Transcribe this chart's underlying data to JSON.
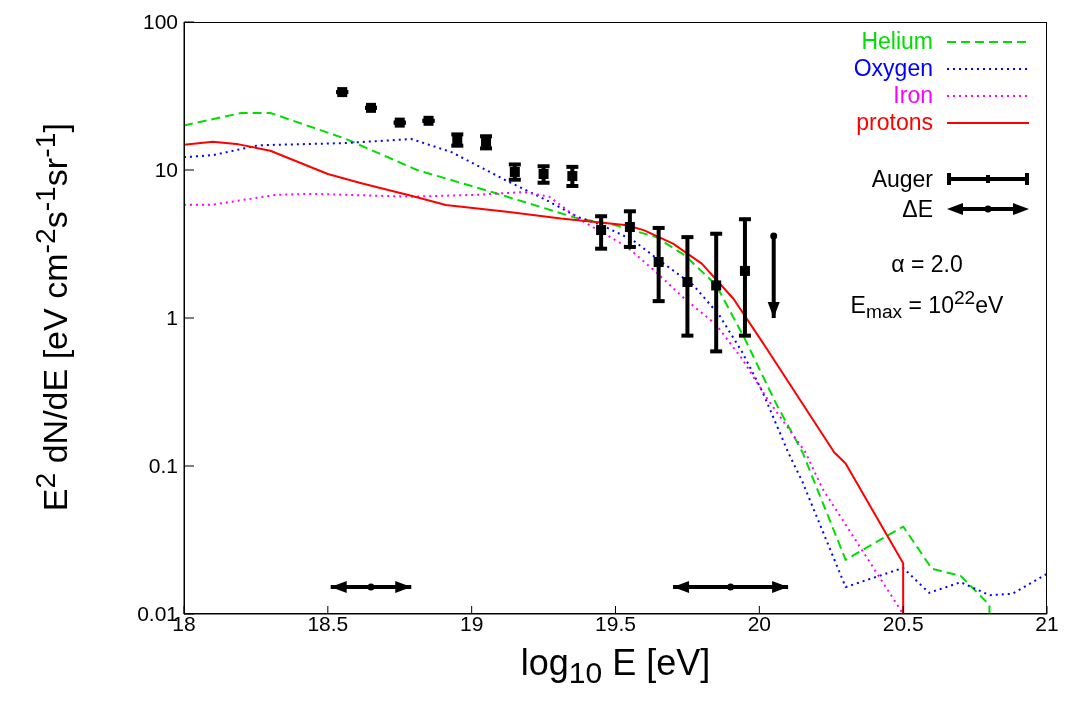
{
  "chart_data": {
    "type": "line",
    "xlabel": "log$_{10}$ E [eV]",
    "ylabel": "E$^{2}$ dN/dE [eV cm$^{-2}$s$^{-1}$sr$^{-1}$]",
    "xlim": [
      18,
      21
    ],
    "xticks": [
      18,
      18.5,
      19,
      19.5,
      20,
      20.5,
      21
    ],
    "ylim": [
      0.01,
      100
    ],
    "yticks": [
      0.01,
      0.1,
      1,
      10,
      100
    ],
    "log": "y",
    "legend": "top right",
    "annotations": [
      "α = 2.0",
      "E$_{max}$ = 10$^{22}$eV"
    ],
    "series": [
      {
        "name": "Helium",
        "color": "#00dd00",
        "line_style": "dashed",
        "x": [
          18.0,
          18.2,
          18.3,
          18.56,
          18.81,
          19.07,
          19.37,
          19.48,
          19.64,
          19.74,
          19.85,
          19.95,
          20.06,
          20.15,
          20.3,
          20.5,
          20.6,
          20.7,
          20.8,
          20.8
        ],
        "values": [
          20,
          24.3,
          24.3,
          16.3,
          10,
          7.1,
          4.7,
          4.34,
          3.53,
          2.66,
          1.67,
          0.72,
          0.26,
          0.124,
          0.0232,
          0.039,
          0.0202,
          0.0181,
          0.0115,
          0.01
        ]
      },
      {
        "name": "Oxygen",
        "color": "#0000ff",
        "line_style": "dotted",
        "x": [
          18.0,
          18.1,
          18.26,
          18.56,
          18.79,
          18.93,
          19.13,
          19.25,
          19.37,
          19.45,
          19.56,
          19.66,
          19.77,
          19.86,
          19.94,
          20.01,
          20.1,
          20.15,
          20.3,
          20.5,
          20.59,
          20.7,
          20.8,
          20.88,
          21.0
        ],
        "values": [
          12.2,
          12.6,
          14.7,
          15.2,
          16.2,
          13.2,
          8.3,
          6.4,
          4.8,
          4.26,
          3.36,
          2.39,
          1.67,
          1.05,
          0.59,
          0.32,
          0.124,
          0.078,
          0.0152,
          0.0205,
          0.0139,
          0.0164,
          0.0134,
          0.0137,
          0.0187
        ]
      },
      {
        "name": "Iron",
        "color": "#ff00ff",
        "line_style": "dotted",
        "x": [
          18.0,
          18.1,
          18.32,
          18.45,
          18.79,
          19.02,
          19.18,
          19.27,
          19.37,
          19.54,
          19.64,
          19.74,
          19.85,
          19.94,
          20.03,
          20.16,
          20.22,
          20.5
        ],
        "values": [
          5.83,
          5.83,
          6.8,
          6.9,
          6.6,
          6.8,
          7.1,
          6.6,
          4.7,
          3.02,
          2.05,
          1.35,
          0.9,
          0.53,
          0.28,
          0.124,
          0.07,
          0.01
        ]
      },
      {
        "name": "protons",
        "color": "#ff0000",
        "line_style": "solid",
        "x": [
          18.0,
          18.1,
          18.19,
          18.3,
          18.5,
          18.62,
          18.79,
          18.91,
          19.13,
          19.31,
          19.54,
          19.6,
          19.7,
          19.8,
          19.91,
          20.01,
          20.26,
          20.3,
          20.5,
          20.5
        ],
        "values": [
          14.8,
          15.5,
          14.9,
          13.5,
          9.4,
          8.1,
          6.7,
          5.8,
          5.2,
          4.7,
          4.23,
          3.91,
          3.18,
          2.33,
          1.35,
          0.69,
          0.124,
          0.104,
          0.022,
          0.01
        ]
      },
      {
        "name": "Auger",
        "type": "scatter",
        "color": "#000000",
        "marker": "square",
        "x": [
          18.55,
          18.65,
          18.75,
          18.85,
          18.95,
          19.05,
          19.15,
          19.25,
          19.35,
          19.45,
          19.55,
          19.65,
          19.75,
          19.85,
          19.95
        ],
        "values": [
          33.6,
          26.3,
          20.9,
          21.5,
          16,
          15.5,
          9.7,
          9.4,
          9.1,
          3.93,
          4.12,
          2.39,
          1.75,
          1.66,
          2.08
        ],
        "errors": [
          null,
          null,
          null,
          null,
          [
            14.6,
            17.4
          ],
          [
            14.0,
            16.9
          ],
          [
            8.6,
            10.9
          ],
          [
            8.2,
            10.6
          ],
          [
            7.8,
            10.5
          ],
          [
            2.94,
            4.87
          ],
          [
            3.02,
            5.26
          ],
          [
            1.3,
            4.06
          ],
          [
            0.76,
            3.52
          ],
          [
            0.595,
            3.71
          ],
          [
            0.76,
            4.65
          ]
        ]
      },
      {
        "type": "scatter",
        "color": "#000000",
        "marker": "circle",
        "x": [
          20.05
        ],
        "values": [
          3.58
        ],
        "errors": [
          [
            1,
            3.58
          ]
        ]
      },
      {
        "name": "ΔE",
        "type": "scatter",
        "color": "#000000",
        "marker": "circle",
        "x": [
          18.65,
          19.9
        ],
        "values": [
          0.0152,
          0.0152
        ],
        "xerrors": [
          0.14,
          0.2
        ]
      }
    ]
  }
}
